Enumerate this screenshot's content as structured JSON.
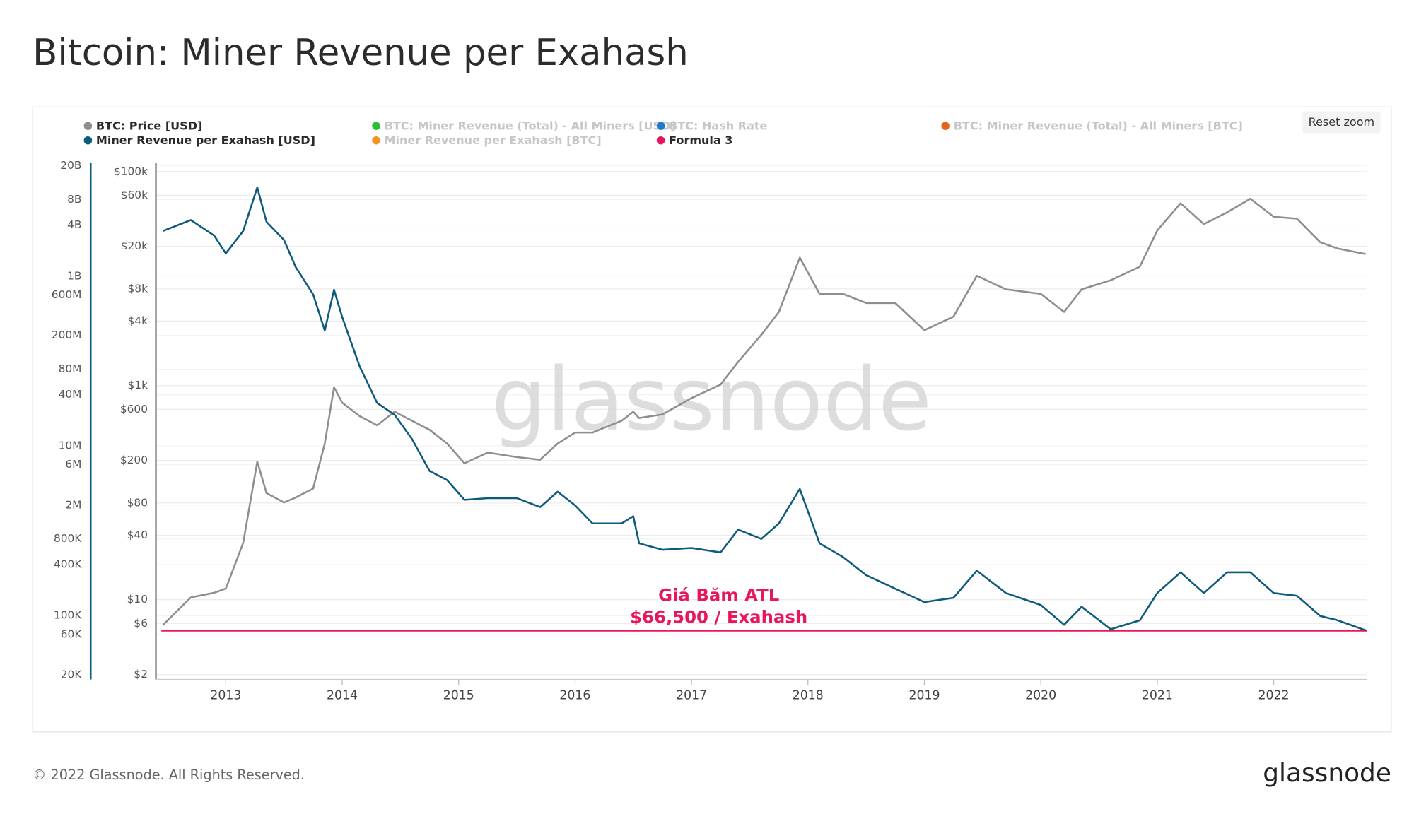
{
  "chart_data": {
    "type": "line",
    "title": "Bitcoin: Miner Revenue per Exahash",
    "watermark": "glassnode",
    "log_scale": true,
    "grid": true,
    "x": [
      2012.46,
      2012.7,
      2012.9,
      2013.0,
      2013.15,
      2013.27,
      2013.35,
      2013.5,
      2013.6,
      2013.75,
      2013.85,
      2013.93,
      2014.0,
      2014.15,
      2014.3,
      2014.45,
      2014.6,
      2014.75,
      2014.9,
      2015.05,
      2015.25,
      2015.5,
      2015.7,
      2015.85,
      2016.0,
      2016.15,
      2016.4,
      2016.5,
      2016.55,
      2016.75,
      2017.0,
      2017.25,
      2017.4,
      2017.6,
      2017.75,
      2017.93,
      2018.1,
      2018.3,
      2018.5,
      2018.75,
      2019.0,
      2019.25,
      2019.45,
      2019.7,
      2020.0,
      2020.2,
      2020.35,
      2020.6,
      2020.85,
      2021.0,
      2021.2,
      2021.4,
      2021.6,
      2021.8,
      2022.0,
      2022.2,
      2022.4,
      2022.55,
      2022.79
    ],
    "xlim": [
      2012.4,
      2022.8
    ],
    "xticks": [
      2013,
      2014,
      2015,
      2016,
      2017,
      2018,
      2019,
      2020,
      2021,
      2022
    ],
    "ylim": [
      1.8,
      120000
    ],
    "yticks": [
      {
        "value": 100000,
        "label": "$100k"
      },
      {
        "value": 60000,
        "label": "$60k"
      },
      {
        "value": 20000,
        "label": "$20k"
      },
      {
        "value": 8000,
        "label": "$8k"
      },
      {
        "value": 4000,
        "label": "$4k"
      },
      {
        "value": 1000,
        "label": "$1k"
      },
      {
        "value": 600,
        "label": "$600"
      },
      {
        "value": 200,
        "label": "$200"
      },
      {
        "value": 80,
        "label": "$80"
      },
      {
        "value": 40,
        "label": "$40"
      },
      {
        "value": 10,
        "label": "$10"
      },
      {
        "value": 6,
        "label": "$6"
      },
      {
        "value": 2,
        "label": "$2"
      }
    ],
    "y2lim": [
      17700,
      21500000000
    ],
    "y2ticks": [
      {
        "value": 20000000000,
        "label": "20B"
      },
      {
        "value": 8000000000,
        "label": "8B"
      },
      {
        "value": 4000000000,
        "label": "4B"
      },
      {
        "value": 1000000000,
        "label": "1B"
      },
      {
        "value": 600000000,
        "label": "600M"
      },
      {
        "value": 200000000,
        "label": "200M"
      },
      {
        "value": 80000000,
        "label": "80M"
      },
      {
        "value": 40000000,
        "label": "40M"
      },
      {
        "value": 10000000,
        "label": "10M"
      },
      {
        "value": 6000000,
        "label": "6M"
      },
      {
        "value": 2000000,
        "label": "2M"
      },
      {
        "value": 800000,
        "label": "800K"
      },
      {
        "value": 400000,
        "label": "400K"
      },
      {
        "value": 100000,
        "label": "100K"
      },
      {
        "value": 60000,
        "label": "60K"
      },
      {
        "value": 20000,
        "label": "20K"
      }
    ],
    "series": [
      {
        "name": "BTC: Price [USD]",
        "color": "#8e8e8e",
        "axis": "y",
        "values": [
          5.8,
          10.5,
          11.6,
          12.7,
          34,
          195,
          99,
          81,
          90,
          109,
          288,
          966,
          693,
          518,
          426,
          570,
          469,
          386,
          288,
          188,
          237,
          215,
          203,
          288,
          364,
          364,
          469,
          570,
          498,
          538,
          764,
          1023,
          1667,
          2990,
          4875,
          15700,
          7190,
          7190,
          5915,
          5915,
          3296,
          4416,
          10620,
          7930,
          7190,
          4875,
          7930,
          9640,
          12910,
          28180,
          50550,
          32280,
          41590,
          55720,
          37750,
          36300,
          21860,
          19070,
          16950
        ]
      },
      {
        "name": "Miner Revenue per Exahash [USD]",
        "color": "#0e5a7c",
        "axis": "y2",
        "values": [
          3410000000,
          4580000000,
          3010000000,
          1850000000,
          3410000000,
          11100000000,
          4360000000,
          2670000000,
          1280000000,
          610000000,
          229000000,
          690000000,
          330000000,
          86000000,
          32000000,
          23200000,
          12000000,
          5060000,
          3960000,
          2310000,
          2420000,
          2420000,
          1900000,
          2880000,
          1990000,
          1220000,
          1220000,
          1480000,
          710000,
          597000,
          627000,
          555000,
          1030000,
          800000,
          1220000,
          3100000,
          710000,
          491000,
          300000,
          207000,
          144000,
          162000,
          339000,
          184000,
          133000,
          78000,
          127000,
          69000,
          88000,
          184000,
          323000,
          184000,
          323000,
          323000,
          184000,
          171000,
          99000,
          88000,
          67000
        ]
      }
    ],
    "hidden_series": [
      {
        "name": "BTC: Miner Revenue (Total) - All Miners [USD]",
        "color": "#2bc02f"
      },
      {
        "name": "BTC: Hash Rate",
        "color": "#1f78d1"
      },
      {
        "name": "BTC: Miner Revenue (Total) - All Miners [BTC]",
        "color": "#e3651d"
      },
      {
        "name": "Miner Revenue per Exahash [BTC]",
        "color": "#f7931e"
      }
    ],
    "reference_line": {
      "name": "Formula 3",
      "color": "#e8175d",
      "axis": "y2",
      "value": 66500
    },
    "annotation": [
      "Giá Băm ATL",
      "$66,500 / Exahash"
    ]
  },
  "reset_zoom": "Reset zoom",
  "footer": {
    "copyright": "© 2022 Glassnode. All Rights Reserved.",
    "logo": "glassnode"
  }
}
